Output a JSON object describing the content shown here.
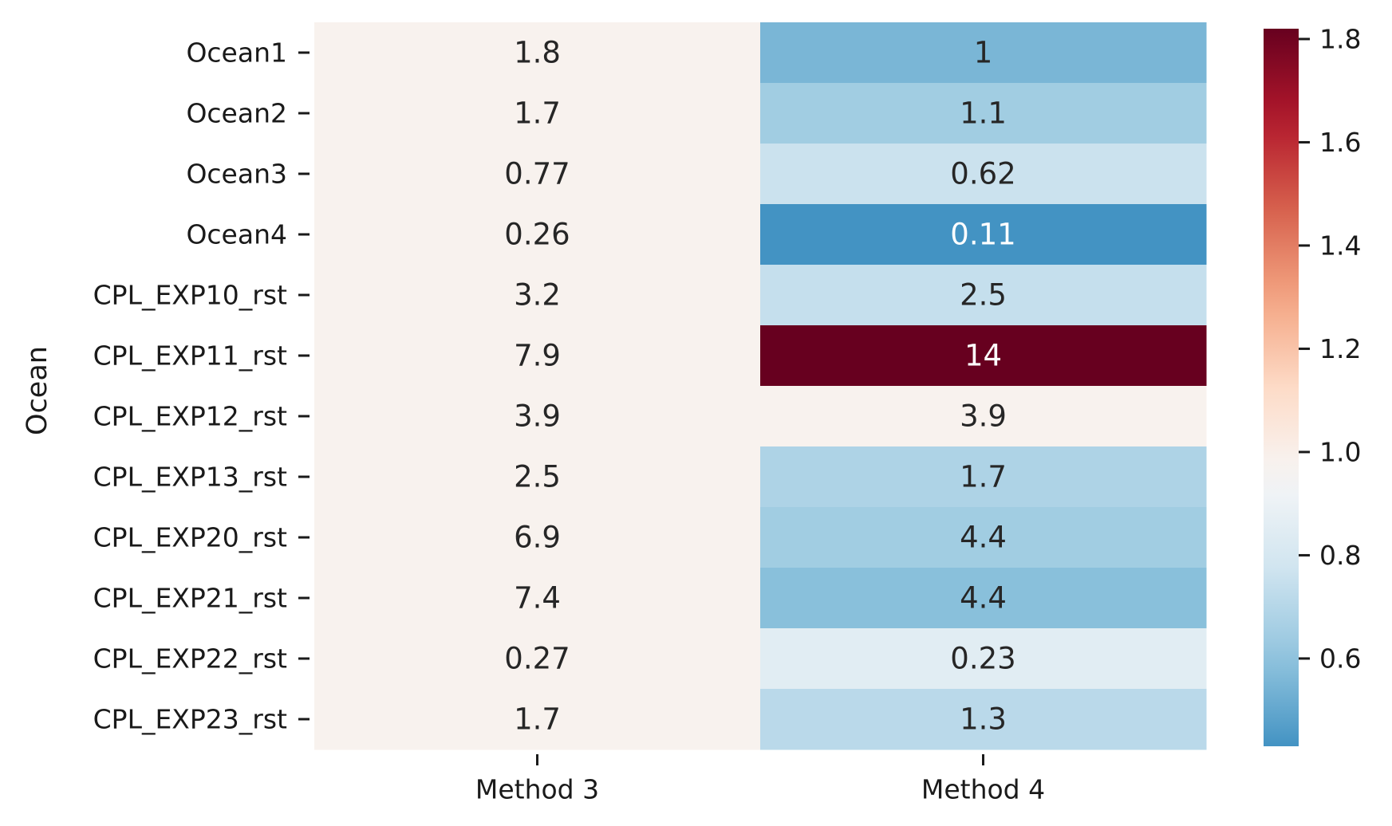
{
  "chart_data": {
    "type": "heatmap",
    "ylabel": "Ocean",
    "columns": [
      "Method 3",
      "Method 4"
    ],
    "rows": [
      "Ocean1",
      "Ocean2",
      "Ocean3",
      "Ocean4",
      "CPL_EXP10_rst",
      "CPL_EXP11_rst",
      "CPL_EXP12_rst",
      "CPL_EXP13_rst",
      "CPL_EXP20_rst",
      "CPL_EXP21_rst",
      "CPL_EXP22_rst",
      "CPL_EXP23_rst"
    ],
    "annotations": [
      [
        "1.8",
        "1"
      ],
      [
        "1.7",
        "1.1"
      ],
      [
        "0.77",
        "0.62"
      ],
      [
        "0.26",
        "0.11"
      ],
      [
        "3.2",
        "2.5"
      ],
      [
        "7.9",
        "14"
      ],
      [
        "3.9",
        "3.9"
      ],
      [
        "2.5",
        "1.7"
      ],
      [
        "6.9",
        "4.4"
      ],
      [
        "7.4",
        "4.4"
      ],
      [
        "0.27",
        "0.23"
      ],
      [
        "1.7",
        "1.3"
      ]
    ],
    "color_values": [
      [
        0.985,
        0.55
      ],
      [
        0.985,
        0.645
      ],
      [
        0.985,
        0.76
      ],
      [
        0.985,
        0.43
      ],
      [
        0.985,
        0.745
      ],
      [
        0.985,
        1.82
      ],
      [
        0.985,
        0.985
      ],
      [
        0.985,
        0.68
      ],
      [
        0.985,
        0.645
      ],
      [
        0.985,
        0.585
      ],
      [
        0.985,
        0.85
      ],
      [
        0.985,
        0.715
      ]
    ],
    "colorbar": {
      "colormap": "RdBu_r",
      "vmin": 0.43,
      "vmax": 1.82,
      "ticks": [
        "0.6",
        "0.8",
        "1.0",
        "1.2",
        "1.4",
        "1.6",
        "1.8"
      ]
    },
    "legend": "colorbar-right",
    "grid": false
  }
}
